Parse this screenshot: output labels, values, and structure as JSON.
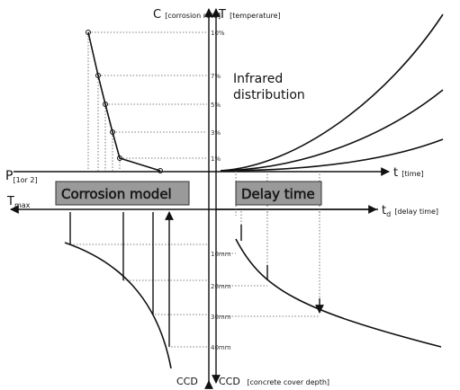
{
  "axes": {
    "corrosion": {
      "symbol": "C",
      "label": "[corrosion rate]"
    },
    "temperature": {
      "symbol": "T",
      "label": "[temperature]"
    },
    "time": {
      "symbol": "t",
      "label": "[time]"
    },
    "delay": {
      "symbol": "t",
      "subscript": "d",
      "label": "[delay time]"
    },
    "p": {
      "symbol": "P",
      "label": "[1or 2]"
    },
    "tmax": {
      "symbol": "T",
      "subscript": "max"
    },
    "ccd_left": {
      "symbol": "CCD"
    },
    "ccd_right": {
      "symbol": "CCD",
      "label": "[concrete cover depth]"
    }
  },
  "rate_ticks": [
    "10%",
    "7%",
    "5%",
    "3%",
    "1%"
  ],
  "depth_ticks": [
    "10mm",
    "20mm",
    "30mm",
    "40mm"
  ],
  "infrared": [
    "Infrared",
    "distribution"
  ],
  "boxes": {
    "corrosion_model": "Corrosion model",
    "delay_time": "Delay time"
  }
}
